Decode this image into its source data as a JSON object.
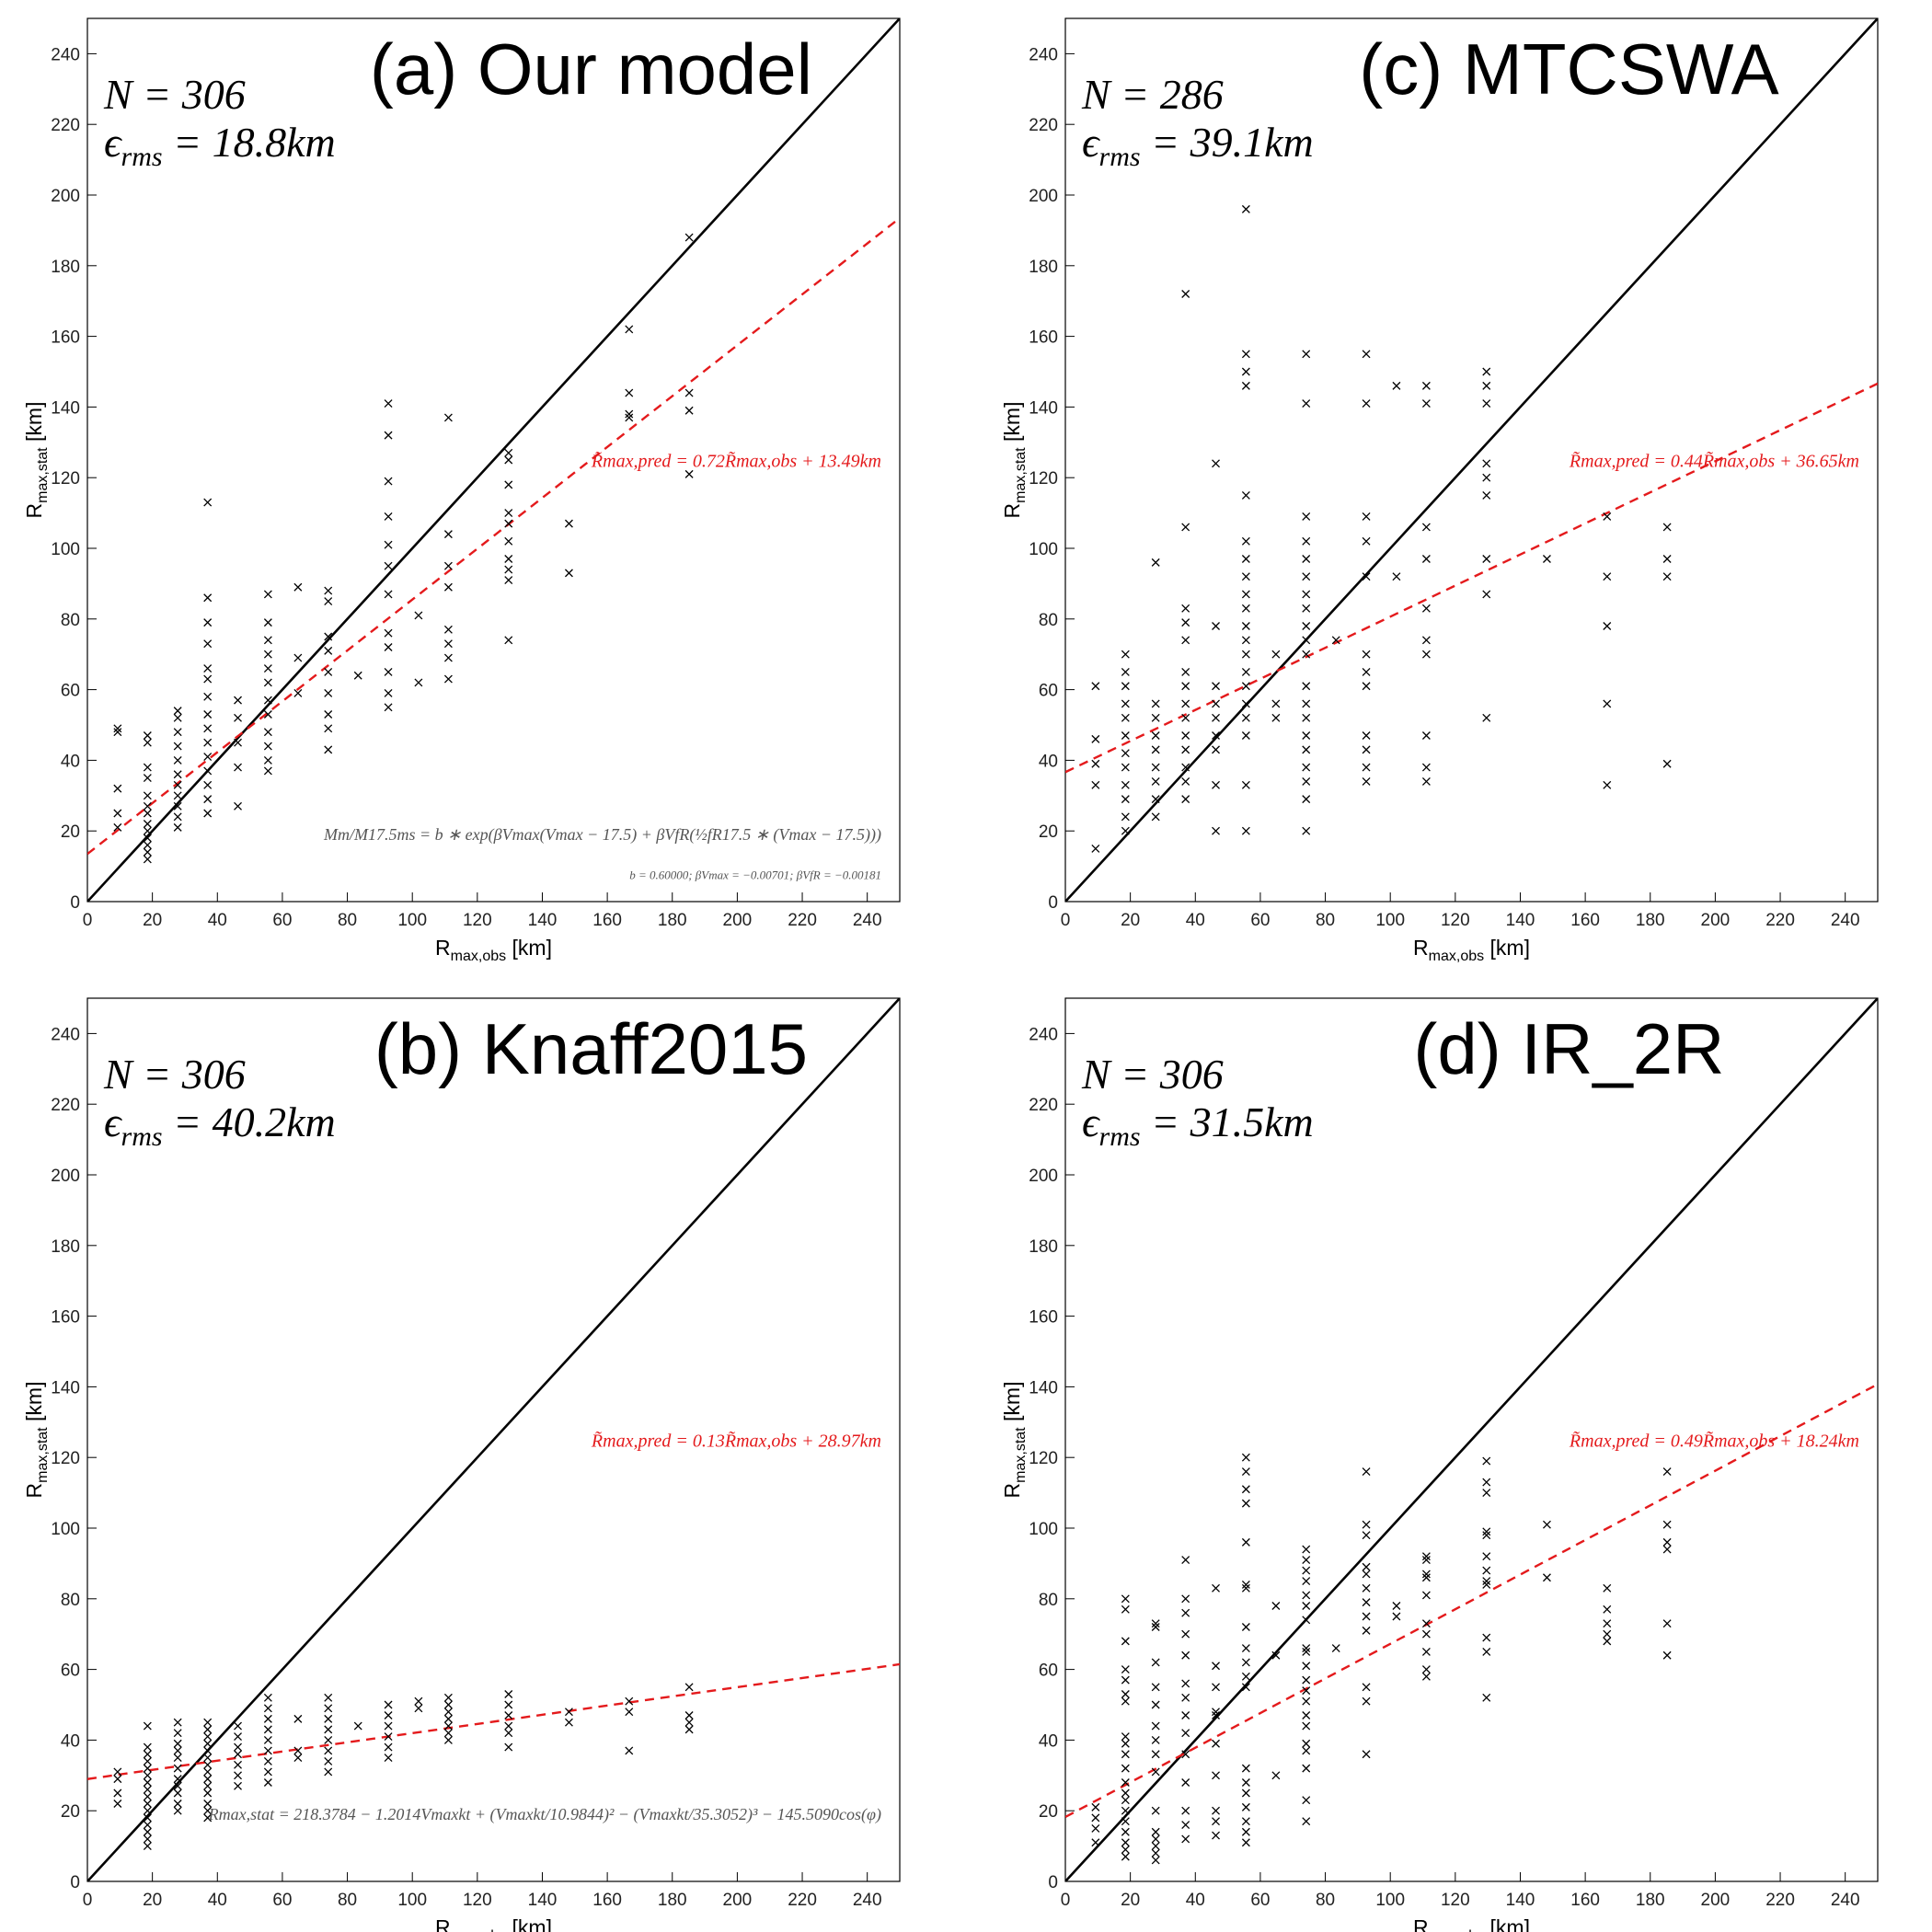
{
  "chart_data": [
    {
      "type": "scatter",
      "title": "(a) Our model",
      "count_label": "N = 306",
      "rms_symbol": "ϵ",
      "rms_sub": "rms",
      "rms_text": " = 18.8km",
      "fit_label": "R̃max,pred = 0.72R̃max,obs + 13.49km",
      "formula": [
        "Mm/M17.5ms = b ∗ exp(βVmax(Vmax − 17.5) + βVfR(½fR17.5 ∗ (Vmax − 17.5)))",
        "b = 0.60000; βVmax = −0.00701; βVfR = −0.00181"
      ],
      "xlabel": {
        "main": "R",
        "sub": "max,obs",
        "unit": " [km]"
      },
      "ylabel": {
        "main": "R",
        "sub": "max,stat",
        "unit": " [km]"
      },
      "xlim": [
        0,
        250
      ],
      "ylim": [
        0,
        250
      ],
      "xticks": [
        0,
        20,
        40,
        60,
        80,
        100,
        120,
        140,
        160,
        180,
        200,
        220,
        240
      ],
      "yticks": [
        0,
        20,
        40,
        60,
        80,
        100,
        120,
        140,
        160,
        180,
        200,
        220,
        240
      ],
      "marker_color": "#000000",
      "lines": [
        {
          "x": [
            0,
            250
          ],
          "y": [
            0,
            250
          ],
          "color": "#000000",
          "dash": false
        },
        {
          "x": [
            0,
            250
          ],
          "y": [
            13.49,
            193.49
          ],
          "color": "#e41a1c",
          "dash": true
        }
      ],
      "point_columns": [
        {
          "x": 9.3,
          "values": [
            48,
            49,
            32,
            25,
            21
          ]
        },
        {
          "x": 18.5,
          "values": [
            47,
            45,
            38,
            35,
            30,
            27,
            25,
            22,
            20,
            18,
            16,
            14,
            12
          ]
        },
        {
          "x": 27.8,
          "values": [
            54,
            52,
            48,
            44,
            40,
            36,
            33,
            30,
            27,
            24,
            21
          ]
        },
        {
          "x": 37,
          "values": [
            113,
            86,
            79,
            73,
            66,
            63,
            58,
            53,
            49,
            45,
            41,
            37,
            33,
            29,
            25
          ]
        },
        {
          "x": 46.3,
          "values": [
            57,
            52,
            45,
            38,
            27
          ]
        },
        {
          "x": 55.6,
          "values": [
            87,
            79,
            74,
            70,
            66,
            62,
            57,
            53,
            48,
            44,
            40,
            37
          ]
        },
        {
          "x": 64.8,
          "values": [
            89,
            69,
            59
          ]
        },
        {
          "x": 74.1,
          "values": [
            88,
            85,
            75,
            71,
            65,
            59,
            53,
            49,
            43
          ]
        },
        {
          "x": 83.3,
          "values": [
            64
          ]
        },
        {
          "x": 92.6,
          "values": [
            141,
            132,
            119,
            109,
            101,
            95,
            87,
            76,
            72,
            65,
            59,
            55
          ]
        },
        {
          "x": 101.9,
          "values": [
            81,
            62
          ]
        },
        {
          "x": 111.1,
          "values": [
            137,
            104,
            95,
            89,
            77,
            73,
            69,
            63
          ]
        },
        {
          "x": 129.6,
          "values": [
            127,
            125,
            118,
            110,
            107,
            102,
            97,
            94,
            91,
            74
          ]
        },
        {
          "x": 148.2,
          "values": [
            107,
            93
          ]
        },
        {
          "x": 166.7,
          "values": [
            162,
            144,
            138,
            137
          ]
        },
        {
          "x": 185.2,
          "values": [
            188,
            144,
            139,
            121
          ]
        }
      ]
    },
    {
      "type": "scatter",
      "title": "(c) MTCSWA",
      "count_label": "N = 286",
      "rms_symbol": "ϵ",
      "rms_sub": "rms",
      "rms_text": " = 39.1km",
      "fit_label": "R̃max,pred = 0.44R̃max,obs + 36.65km",
      "xlabel": {
        "main": "R",
        "sub": "max,obs",
        "unit": " [km]"
      },
      "ylabel": {
        "main": "R",
        "sub": "max,stat",
        "unit": " [km]"
      },
      "xlim": [
        0,
        250
      ],
      "ylim": [
        0,
        250
      ],
      "xticks": [
        0,
        20,
        40,
        60,
        80,
        100,
        120,
        140,
        160,
        180,
        200,
        220,
        240
      ],
      "yticks": [
        0,
        20,
        40,
        60,
        80,
        100,
        120,
        140,
        160,
        180,
        200,
        220,
        240
      ],
      "marker_color": "#000000",
      "lines": [
        {
          "x": [
            0,
            250
          ],
          "y": [
            0,
            250
          ],
          "color": "#000000",
          "dash": false
        },
        {
          "x": [
            0,
            250
          ],
          "y": [
            36.65,
            146.65
          ],
          "color": "#e41a1c",
          "dash": true
        }
      ],
      "point_columns": [
        {
          "x": 9.3,
          "values": [
            61,
            46,
            39,
            33,
            15
          ]
        },
        {
          "x": 18.5,
          "values": [
            70,
            65,
            61,
            56,
            52,
            47,
            42,
            38,
            33,
            29,
            24,
            20
          ]
        },
        {
          "x": 27.8,
          "values": [
            96,
            56,
            52,
            47,
            43,
            38,
            34,
            29,
            24
          ]
        },
        {
          "x": 37,
          "values": [
            172,
            106,
            83,
            79,
            74,
            65,
            61,
            56,
            52,
            47,
            43,
            38,
            34,
            29
          ]
        },
        {
          "x": 46.3,
          "values": [
            124,
            78,
            61,
            56,
            52,
            47,
            43,
            33,
            20
          ]
        },
        {
          "x": 55.6,
          "values": [
            196,
            155,
            150,
            146,
            115,
            102,
            97,
            92,
            87,
            83,
            78,
            74,
            70,
            65,
            61,
            56,
            52,
            47,
            33,
            20
          ]
        },
        {
          "x": 64.8,
          "values": [
            70,
            56,
            52
          ]
        },
        {
          "x": 74.1,
          "values": [
            155,
            141,
            109,
            102,
            97,
            92,
            87,
            83,
            78,
            74,
            70,
            61,
            56,
            52,
            47,
            43,
            38,
            34,
            29,
            20
          ]
        },
        {
          "x": 83.3,
          "values": [
            74
          ]
        },
        {
          "x": 92.6,
          "values": [
            155,
            141,
            109,
            102,
            92,
            70,
            65,
            61,
            47,
            43,
            38,
            34
          ]
        },
        {
          "x": 101.9,
          "values": [
            146,
            92
          ]
        },
        {
          "x": 111.1,
          "values": [
            146,
            141,
            106,
            97,
            83,
            74,
            70,
            47,
            38,
            34
          ]
        },
        {
          "x": 129.6,
          "values": [
            150,
            146,
            141,
            124,
            120,
            115,
            97,
            87,
            52
          ]
        },
        {
          "x": 148.2,
          "values": [
            97
          ]
        },
        {
          "x": 166.7,
          "values": [
            109,
            92,
            78,
            56,
            33
          ]
        },
        {
          "x": 185.2,
          "values": [
            106,
            97,
            92,
            39
          ]
        }
      ]
    },
    {
      "type": "scatter",
      "title": "(b) Knaff2015",
      "count_label": "N = 306",
      "rms_symbol": "ϵ",
      "rms_sub": "rms",
      "rms_text": " = 40.2km",
      "fit_label": "R̃max,pred = 0.13R̃max,obs + 28.97km",
      "formula": [
        "Rmax,stat = 218.3784 − 1.2014Vmaxkt + (Vmaxkt/10.9844)² − (Vmaxkt/35.3052)³ − 145.5090cos(φ)"
      ],
      "xlabel": {
        "main": "R",
        "sub": "max,obs",
        "unit": " [km]"
      },
      "ylabel": {
        "main": "R",
        "sub": "max,stat",
        "unit": " [km]"
      },
      "xlim": [
        0,
        250
      ],
      "ylim": [
        0,
        250
      ],
      "xticks": [
        0,
        20,
        40,
        60,
        80,
        100,
        120,
        140,
        160,
        180,
        200,
        220,
        240
      ],
      "yticks": [
        0,
        20,
        40,
        60,
        80,
        100,
        120,
        140,
        160,
        180,
        200,
        220,
        240
      ],
      "marker_color": "#000000",
      "lines": [
        {
          "x": [
            0,
            250
          ],
          "y": [
            0,
            250
          ],
          "color": "#000000",
          "dash": false
        },
        {
          "x": [
            0,
            250
          ],
          "y": [
            28.97,
            61.47
          ],
          "color": "#e41a1c",
          "dash": true
        }
      ],
      "point_columns": [
        {
          "x": 9.3,
          "values": [
            31,
            29,
            25,
            22
          ]
        },
        {
          "x": 18.5,
          "values": [
            44,
            38,
            36,
            34,
            32,
            30,
            28,
            26,
            24,
            22,
            20,
            18,
            16,
            14,
            12,
            10
          ]
        },
        {
          "x": 27.8,
          "values": [
            45,
            42,
            39,
            37,
            35,
            32,
            29,
            27,
            25,
            22,
            20
          ]
        },
        {
          "x": 37,
          "values": [
            45,
            43,
            41,
            39,
            37,
            35,
            33,
            31,
            29,
            27,
            25,
            22,
            20,
            18
          ]
        },
        {
          "x": 46.3,
          "values": [
            44,
            41,
            38,
            36,
            33,
            30,
            27
          ]
        },
        {
          "x": 55.6,
          "values": [
            52,
            49,
            46,
            43,
            40,
            37,
            34,
            31,
            28
          ]
        },
        {
          "x": 64.8,
          "values": [
            46,
            37,
            35
          ]
        },
        {
          "x": 74.1,
          "values": [
            52,
            49,
            46,
            43,
            40,
            37,
            34,
            31
          ]
        },
        {
          "x": 83.3,
          "values": [
            44
          ]
        },
        {
          "x": 92.6,
          "values": [
            50,
            47,
            44,
            41,
            38,
            35
          ]
        },
        {
          "x": 101.9,
          "values": [
            51,
            49
          ]
        },
        {
          "x": 111.1,
          "values": [
            52,
            50,
            48,
            46,
            44,
            42,
            40
          ]
        },
        {
          "x": 129.6,
          "values": [
            53,
            50,
            47,
            44,
            42,
            38
          ]
        },
        {
          "x": 148.2,
          "values": [
            48,
            45
          ]
        },
        {
          "x": 166.7,
          "values": [
            51,
            48,
            37
          ]
        },
        {
          "x": 185.2,
          "values": [
            55,
            47,
            45,
            43
          ]
        }
      ]
    },
    {
      "type": "scatter",
      "title": "(d) IR_2R",
      "count_label": "N = 306",
      "rms_symbol": "ϵ",
      "rms_sub": "rms",
      "rms_text": " = 31.5km",
      "fit_label": "R̃max,pred = 0.49R̃max,obs + 18.24km",
      "xlabel": {
        "main": "R",
        "sub": "max,obs",
        "unit": " [km]"
      },
      "ylabel": {
        "main": "R",
        "sub": "max,stat",
        "unit": " [km]"
      },
      "xlim": [
        0,
        250
      ],
      "ylim": [
        0,
        250
      ],
      "xticks": [
        0,
        20,
        40,
        60,
        80,
        100,
        120,
        140,
        160,
        180,
        200,
        220,
        240
      ],
      "yticks": [
        0,
        20,
        40,
        60,
        80,
        100,
        120,
        140,
        160,
        180,
        200,
        220,
        240
      ],
      "marker_color": "#000000",
      "lines": [
        {
          "x": [
            0,
            250
          ],
          "y": [
            0,
            250
          ],
          "color": "#000000",
          "dash": false
        },
        {
          "x": [
            0,
            250
          ],
          "y": [
            18.24,
            140.74
          ],
          "color": "#e41a1c",
          "dash": true
        }
      ],
      "point_columns": [
        {
          "x": 9.3,
          "values": [
            21,
            18,
            15,
            11
          ]
        },
        {
          "x": 18.5,
          "values": [
            80,
            77,
            68,
            60,
            57,
            53,
            51,
            41,
            39,
            36,
            32,
            28,
            25,
            23,
            20,
            17,
            14,
            11,
            9,
            7
          ]
        },
        {
          "x": 27.8,
          "values": [
            73,
            72,
            62,
            55,
            50,
            44,
            40,
            36,
            31,
            20,
            14,
            12,
            10,
            8,
            6
          ]
        },
        {
          "x": 37,
          "values": [
            91,
            80,
            76,
            70,
            64,
            56,
            52,
            47,
            42,
            36,
            28,
            20,
            16,
            12
          ]
        },
        {
          "x": 46.3,
          "values": [
            83,
            61,
            55,
            48,
            47,
            39,
            30,
            20,
            17,
            13
          ]
        },
        {
          "x": 55.6,
          "values": [
            120,
            116,
            111,
            107,
            96,
            84,
            83,
            72,
            66,
            62,
            58,
            55,
            32,
            28,
            25,
            21,
            17,
            14,
            11
          ]
        },
        {
          "x": 64.8,
          "values": [
            78,
            64,
            30
          ]
        },
        {
          "x": 74.1,
          "values": [
            94,
            91,
            88,
            85,
            81,
            78,
            74,
            66,
            65,
            61,
            57,
            54,
            51,
            47,
            44,
            39,
            37,
            32,
            23,
            17
          ]
        },
        {
          "x": 83.3,
          "values": [
            66
          ]
        },
        {
          "x": 92.6,
          "values": [
            116,
            101,
            98,
            89,
            87,
            83,
            79,
            75,
            71,
            55,
            51,
            36
          ]
        },
        {
          "x": 101.9,
          "values": [
            78,
            75
          ]
        },
        {
          "x": 111.1,
          "values": [
            92,
            91,
            87,
            86,
            81,
            73,
            70,
            65,
            60,
            58
          ]
        },
        {
          "x": 129.6,
          "values": [
            119,
            113,
            110,
            99,
            98,
            92,
            88,
            85,
            84,
            69,
            65,
            52
          ]
        },
        {
          "x": 148.2,
          "values": [
            101,
            86
          ]
        },
        {
          "x": 166.7,
          "values": [
            83,
            77,
            73,
            70,
            68
          ]
        },
        {
          "x": 185.2,
          "values": [
            116,
            101,
            96,
            94,
            73,
            64
          ]
        }
      ]
    }
  ]
}
